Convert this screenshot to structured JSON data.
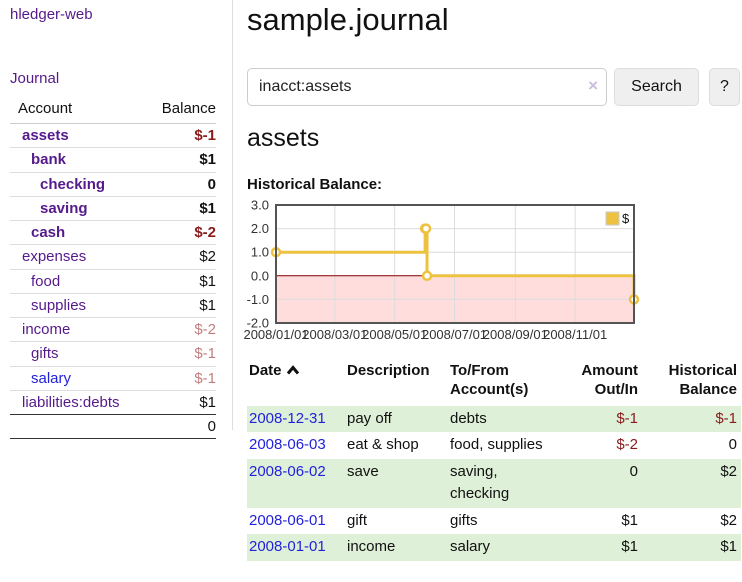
{
  "app": {
    "brand": "hledger-web",
    "title": "sample.journal"
  },
  "nav": {
    "journal": "Journal"
  },
  "search": {
    "value": "inacct:assets",
    "clear_icon": "×",
    "search_button": "Search",
    "help_button": "?"
  },
  "sidebar": {
    "header": {
      "account": "Account",
      "balance": "Balance"
    },
    "rows": [
      {
        "name": "assets",
        "balance": "$-1",
        "indent": "l1",
        "name_cls": "strong",
        "balance_cls": "neg strong"
      },
      {
        "name": "bank",
        "balance": "$1",
        "indent": "l2",
        "name_cls": "strong",
        "balance_cls": "strong"
      },
      {
        "name": "checking",
        "balance": "0",
        "indent": "l3",
        "name_cls": "strong",
        "balance_cls": "strong"
      },
      {
        "name": "saving",
        "balance": "$1",
        "indent": "l3",
        "name_cls": "strong",
        "balance_cls": "strong"
      },
      {
        "name": "cash",
        "balance": "$-2",
        "indent": "l2",
        "name_cls": "strong",
        "balance_cls": "neg strong"
      },
      {
        "name": "expenses",
        "balance": "$2",
        "indent": "l1",
        "name_cls": "",
        "balance_cls": ""
      },
      {
        "name": "food",
        "balance": "$1",
        "indent": "l2",
        "name_cls": "",
        "balance_cls": ""
      },
      {
        "name": "supplies",
        "balance": "$1",
        "indent": "l2",
        "name_cls": "",
        "balance_cls": ""
      },
      {
        "name": "income",
        "balance": "$-2",
        "indent": "l1",
        "name_cls": "",
        "balance_cls": "fade"
      },
      {
        "name": "gifts",
        "balance": "$-1",
        "indent": "l2",
        "name_cls": "",
        "balance_cls": "fade"
      },
      {
        "name": "salary",
        "balance": "$-1",
        "indent": "l2",
        "name_cls": "blue",
        "balance_cls": "fade"
      },
      {
        "name": "liabilities:debts",
        "balance": "$1",
        "indent": "l1",
        "name_cls": "",
        "balance_cls": ""
      }
    ],
    "total": "0"
  },
  "account_view": {
    "heading": "assets",
    "section_label": "Historical Balance:"
  },
  "chart_data": {
    "type": "line",
    "title": "Historical Balance",
    "series": [
      {
        "name": "$",
        "color": "#edc240",
        "step": true,
        "points": [
          {
            "x": "2008-01-01",
            "y": 1
          },
          {
            "x": "2008-06-01",
            "y": 2
          },
          {
            "x": "2008-06-02",
            "y": 2
          },
          {
            "x": "2008-06-03",
            "y": 0
          },
          {
            "x": "2008-12-31",
            "y": -1
          }
        ]
      }
    ],
    "xlim": [
      "2008-01-01",
      "2008-12-31"
    ],
    "ylim": [
      -2,
      3
    ],
    "ytick_labels": [
      "3.0",
      "2.0",
      "1.0",
      "0.0",
      "-1.0",
      "-2.0"
    ],
    "xticks": [
      "2008-01-01",
      "2008-03-01",
      "2008-05-01",
      "2008-07-01",
      "2008-09-01",
      "2008-11-01"
    ],
    "xtick_labels": [
      "2008/01/01",
      "2008/03/01",
      "2008/05/01",
      "2008/07/01",
      "2008/09/01",
      "2008/11/01"
    ],
    "legend": {
      "label": "$",
      "position": "top-right"
    },
    "grid": true,
    "negative_region_color": "#ffdddd",
    "zero_line_color": "#8b0000",
    "border_color": "#545454",
    "grid_color": "#dcdcdc"
  },
  "register": {
    "headers": {
      "date": "Date",
      "description": "Description",
      "account": "To/From\nAccount(s)",
      "amount": "Amount\nOut/In",
      "balance": "Historical\nBalance"
    },
    "rows": [
      {
        "date": "2008-12-31",
        "description": "pay off",
        "accounts": "debts",
        "amount": "$-1",
        "balance": "$-1",
        "amount_cls": "neg",
        "balance_cls": "neg"
      },
      {
        "date": "2008-06-03",
        "description": "eat & shop",
        "accounts": "food, supplies",
        "amount": "$-2",
        "balance": "0",
        "amount_cls": "neg",
        "balance_cls": ""
      },
      {
        "date": "2008-06-02",
        "description": "save",
        "accounts": "saving,\nchecking",
        "amount": "0",
        "balance": "$2",
        "amount_cls": "",
        "balance_cls": ""
      },
      {
        "date": "2008-06-01",
        "description": "gift",
        "accounts": "gifts",
        "amount": "$1",
        "balance": "$2",
        "amount_cls": "",
        "balance_cls": ""
      },
      {
        "date": "2008-01-01",
        "description": "income",
        "accounts": "salary",
        "amount": "$1",
        "balance": "$1",
        "amount_cls": "",
        "balance_cls": ""
      }
    ]
  },
  "colors": {
    "purple": "#551a8b",
    "link_blue": "#2222dd",
    "negative": "#8b1a1a",
    "negative_faded": "#c27f7f",
    "stripe_green": "#dff0d8",
    "chart_line": "#edc240",
    "chart_negative_fill": "#ffdddd",
    "zero_line": "#8b0000"
  }
}
